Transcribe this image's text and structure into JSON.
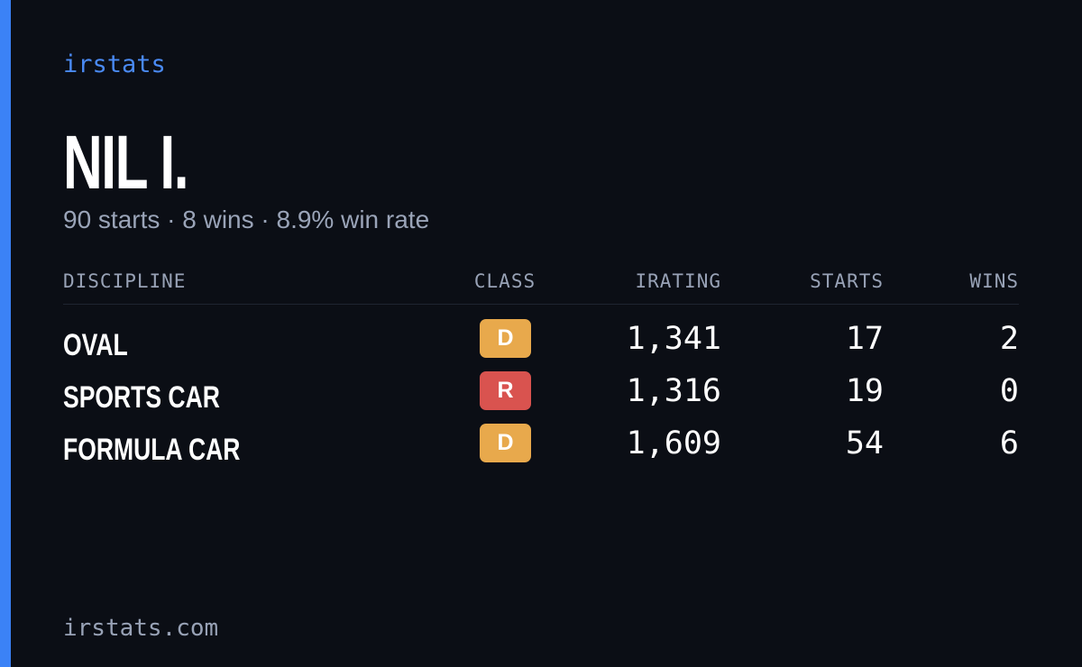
{
  "brand": "irstats",
  "driver": {
    "name": "NIL I.",
    "summary": "90 starts · 8 wins · 8.9% win rate"
  },
  "table": {
    "headers": [
      "DISCIPLINE",
      "CLASS",
      "IRATING",
      "STARTS",
      "WINS"
    ],
    "rows": [
      {
        "discipline": "OVAL",
        "class": "D",
        "class_color": "#e8a94c",
        "irating": "1,341",
        "starts": "17",
        "wins": "2"
      },
      {
        "discipline": "SPORTS CAR",
        "class": "R",
        "class_color": "#d9534f",
        "irating": "1,316",
        "starts": "19",
        "wins": "0"
      },
      {
        "discipline": "FORMULA CAR",
        "class": "D",
        "class_color": "#e8a94c",
        "irating": "1,609",
        "starts": "54",
        "wins": "6"
      }
    ]
  },
  "footer": "irstats.com"
}
